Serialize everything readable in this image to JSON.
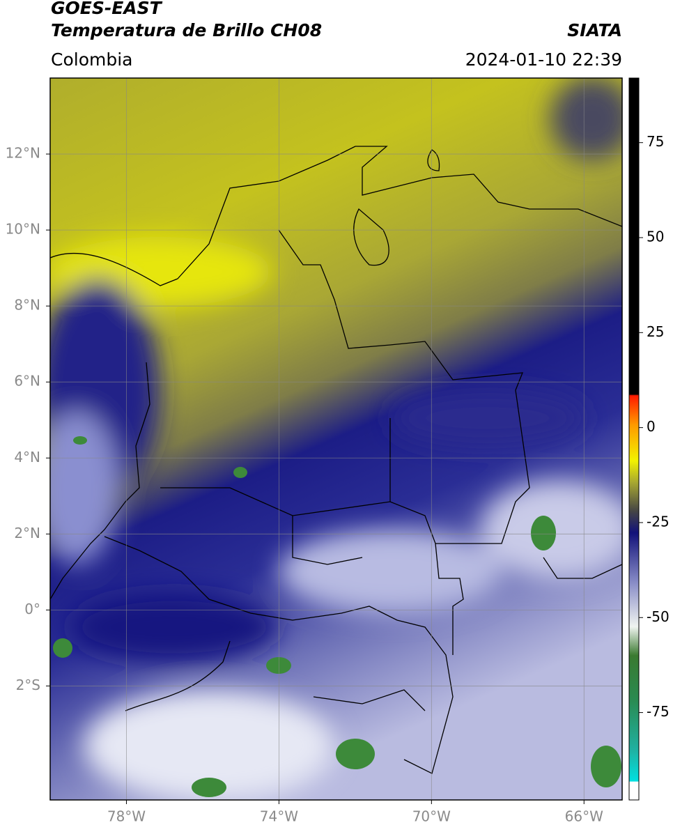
{
  "header": {
    "title": "GOES-EAST",
    "subtitle": "Temperatura de Brillo CH08",
    "source": "SIATA",
    "region": "Colombia",
    "datetime": "2024-01-10 22:39"
  },
  "map": {
    "xlim": [
      -80,
      -65
    ],
    "ylim": [
      -5,
      14
    ],
    "xticks": [
      {
        "value": -78,
        "label": "78°W"
      },
      {
        "value": -74,
        "label": "74°W"
      },
      {
        "value": -70,
        "label": "70°W"
      },
      {
        "value": -66,
        "label": "66°W"
      }
    ],
    "yticks": [
      {
        "value": 12,
        "label": "12°N"
      },
      {
        "value": 10,
        "label": "10°N"
      },
      {
        "value": 8,
        "label": "8°N"
      },
      {
        "value": 6,
        "label": "6°N"
      },
      {
        "value": 4,
        "label": "4°N"
      },
      {
        "value": 2,
        "label": "2°N"
      },
      {
        "value": 0,
        "label": "0°"
      },
      {
        "value": -2,
        "label": "2°S"
      }
    ],
    "grid": true
  },
  "colorbar": {
    "lim": [
      -98,
      92
    ],
    "ticks": [
      75,
      50,
      25,
      0,
      -25,
      -50,
      -75
    ]
  }
}
